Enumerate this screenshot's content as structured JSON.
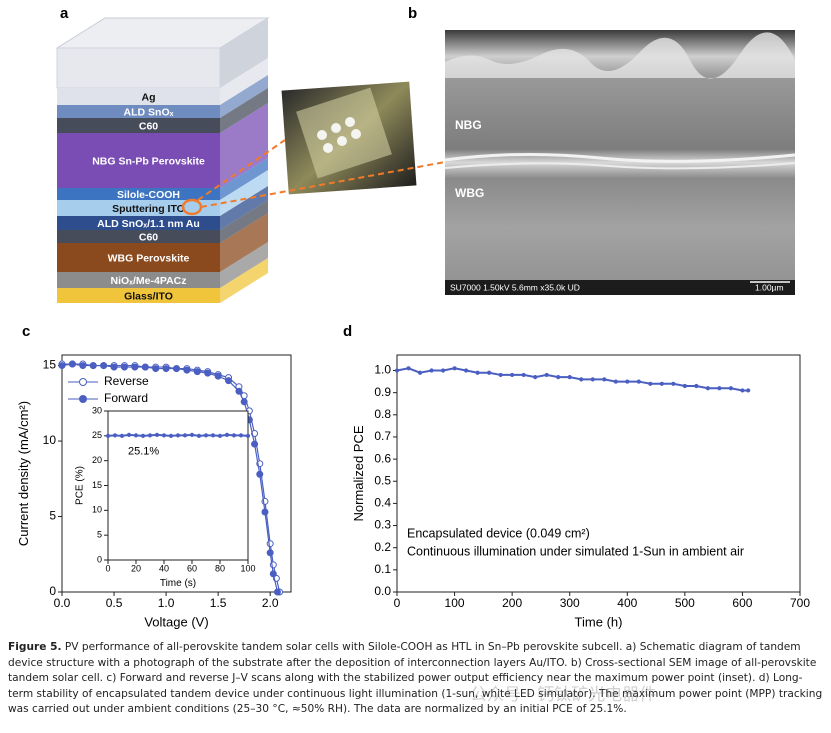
{
  "panels": {
    "a": {
      "label": "a",
      "layers": [
        {
          "text": "Ag",
          "color": "#dfe2ea"
        },
        {
          "text": "ALD SnOₓ",
          "color": "#6f8cc0"
        },
        {
          "text": "C60",
          "color": "#474c5a"
        },
        {
          "text": "NBG Sn-Pb Perovskite",
          "color": "#7a4db5"
        },
        {
          "text": "Silole-COOH",
          "color": "#3d74c2"
        },
        {
          "text": "Sputtering ITO",
          "color": "#a6cdec"
        },
        {
          "text": "ALD SnOₓ/1.1 nm Au",
          "color": "#2d4d8c"
        },
        {
          "text": "C60",
          "color": "#474c5a"
        },
        {
          "text": "WBG Perovskite",
          "color": "#8a4a1e"
        },
        {
          "text": "NiOₓ/Me-4PACz",
          "color": "#8c8c8c"
        },
        {
          "text": "Glass/ITO",
          "color": "#f0c53c"
        }
      ]
    },
    "b": {
      "label": "b",
      "regions": [
        "NBG",
        "WBG"
      ],
      "info": "SU7000 1.50kV 5.6mm x35.0k UD",
      "scale": "1.00µm"
    },
    "c": {
      "label": "c"
    },
    "d": {
      "label": "d"
    }
  },
  "chart_data": [
    {
      "type": "line",
      "x_label": "Voltage (V)",
      "y_label": "Current density (mA/cm²)",
      "xlim": [
        0,
        2.2
      ],
      "ylim": [
        0,
        15.7
      ],
      "xticks": [
        {
          "value": 0,
          "label": "0.0"
        },
        0.5,
        {
          "value": 1,
          "label": "1.0"
        },
        1.5,
        {
          "value": 2,
          "label": "2.0"
        }
      ],
      "yticks": [
        0,
        5,
        10,
        15
      ],
      "legend": "upper left",
      "series": [
        {
          "name": "Reverse",
          "color": "#4a5fc1",
          "filled": false,
          "x": [
            0,
            0.1,
            0.2,
            0.3,
            0.4,
            0.5,
            0.6,
            0.7,
            0.8,
            0.9,
            1.0,
            1.1,
            1.2,
            1.3,
            1.4,
            1.5,
            1.6,
            1.7,
            1.75,
            1.8,
            1.85,
            1.9,
            1.95,
            2.0,
            2.03,
            2.06,
            2.09
          ],
          "values": [
            15.1,
            15.1,
            15.1,
            15.0,
            15.0,
            15.0,
            15.0,
            15.0,
            14.9,
            14.9,
            14.9,
            14.8,
            14.8,
            14.7,
            14.6,
            14.4,
            14.2,
            13.6,
            13.0,
            12.0,
            10.5,
            8.5,
            6.0,
            3.2,
            1.8,
            0.9,
            0
          ]
        },
        {
          "name": "Forward",
          "color": "#4a5fc1",
          "filled": true,
          "x": [
            0,
            0.1,
            0.2,
            0.3,
            0.4,
            0.5,
            0.6,
            0.7,
            0.8,
            0.9,
            1.0,
            1.1,
            1.2,
            1.3,
            1.4,
            1.5,
            1.6,
            1.7,
            1.75,
            1.8,
            1.85,
            1.9,
            1.95,
            2.0,
            2.03,
            2.07
          ],
          "values": [
            15.0,
            15.1,
            15.0,
            15.0,
            15.0,
            14.9,
            14.9,
            14.9,
            14.9,
            14.8,
            14.8,
            14.8,
            14.7,
            14.6,
            14.5,
            14.3,
            14.0,
            13.3,
            12.6,
            11.4,
            9.8,
            7.8,
            5.3,
            2.6,
            1.2,
            0
          ]
        }
      ]
    },
    {
      "type": "line",
      "x_label": "Time (s)",
      "y_label": "PCE (%)",
      "xlim": [
        0,
        100
      ],
      "ylim": [
        0,
        30
      ],
      "xticks": [
        0,
        20,
        40,
        60,
        80,
        100
      ],
      "yticks": [
        0,
        5,
        10,
        15,
        20,
        25,
        30
      ],
      "annotations": [
        "25.1%"
      ],
      "series": [
        {
          "name": null,
          "color": "#4a5fc1",
          "filled": true,
          "x": [
            0,
            5,
            10,
            15,
            20,
            25,
            30,
            35,
            40,
            45,
            50,
            55,
            60,
            65,
            70,
            75,
            80,
            85,
            90,
            95,
            100
          ],
          "values": [
            25.0,
            25.1,
            25.0,
            25.2,
            25.1,
            25.0,
            25.1,
            25.2,
            25.1,
            25.0,
            25.1,
            25.1,
            25.2,
            25.0,
            25.1,
            25.1,
            25.0,
            25.2,
            25.1,
            25.1,
            25.0
          ]
        }
      ]
    },
    {
      "type": "line",
      "x_label": "Time (h)",
      "y_label": "Normalized PCE",
      "xlim": [
        0,
        700
      ],
      "ylim": [
        0,
        1.07
      ],
      "xticks": [
        0,
        100,
        200,
        300,
        400,
        500,
        600,
        700
      ],
      "yticks": [
        {
          "value": 0,
          "label": "0.0"
        },
        0.1,
        0.2,
        0.3,
        0.4,
        0.5,
        0.6,
        0.7,
        0.8,
        0.9,
        {
          "value": 1,
          "label": "1.0"
        }
      ],
      "annotations": [
        "Encapsulated device (0.049 cm²)",
        "Continuous illumination under simulated 1-Sun in ambient air"
      ],
      "series": [
        {
          "name": null,
          "color": "#4a5fc1",
          "filled": true,
          "x": [
            0,
            20,
            40,
            60,
            80,
            100,
            120,
            140,
            160,
            180,
            200,
            220,
            240,
            260,
            280,
            300,
            320,
            340,
            360,
            380,
            400,
            420,
            440,
            460,
            480,
            500,
            520,
            540,
            560,
            580,
            600,
            610
          ],
          "values": [
            1.0,
            1.01,
            0.99,
            1.0,
            1.0,
            1.01,
            1.0,
            0.99,
            0.99,
            0.98,
            0.98,
            0.98,
            0.97,
            0.98,
            0.97,
            0.97,
            0.96,
            0.96,
            0.96,
            0.95,
            0.95,
            0.95,
            0.94,
            0.94,
            0.94,
            0.93,
            0.93,
            0.92,
            0.92,
            0.92,
            0.91,
            0.91
          ]
        }
      ]
    }
  ],
  "caption": {
    "label": "Figure 5.",
    "text": "PV performance of all-perovskite tandem solar cells with Silole-COOH as HTL in Sn–Pb perovskite subcell. a) Schematic diagram of tandem device structure with a photograph of the substrate after the deposition of interconnection layers Au/ITO. b) Cross-sectional SEM image of all-perovskite tandem solar cell. c) Forward and reverse J–V scans along with the stabilized power output efficiency near the maximum power point (inset). d) Long-term stability of encapsulated tandem device under continuous light illumination (1-sun, white LED simulator). The maximum power point (MPP) tracking was carried out under ambient conditions (25–30 °C, ≈50% RH). The data are normalized by an initial PCE of 25.1%."
  },
  "watermark": "公众号 · 钙钛矿光电器件"
}
